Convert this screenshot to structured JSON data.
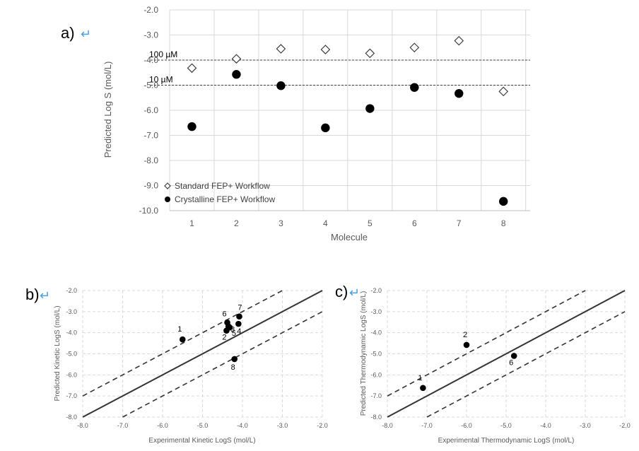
{
  "chart_data": [
    {
      "panel": "a)",
      "type": "scatter",
      "xlabel": "Molecule",
      "ylabel": "Predicted Log S (mol/L)",
      "categories": [
        "1",
        "2",
        "3",
        "4",
        "5",
        "6",
        "7",
        "8"
      ],
      "ylim": [
        -10.0,
        -2.0
      ],
      "y_ticks": [
        "-2.0",
        "-3.0",
        "-4.0",
        "-5.0",
        "-6.0",
        "-7.0",
        "-8.0",
        "-9.0",
        "-10.0"
      ],
      "grid": "vertical",
      "legend_position": "bottom-left",
      "reference_lines": [
        {
          "label": "100 µM",
          "y": -4.0
        },
        {
          "label": "10 µM",
          "y": -5.0
        }
      ],
      "series": [
        {
          "name": "Standard FEP+ Workflow",
          "marker": "open-diamond",
          "values": [
            -4.32,
            -3.95,
            -3.55,
            -3.58,
            -3.73,
            -3.5,
            -3.23,
            -5.25
          ]
        },
        {
          "name": "Crystalline FEP+ Workflow",
          "marker": "filled-circle",
          "values": [
            -6.65,
            -4.57,
            -5.02,
            -6.7,
            -5.93,
            -5.09,
            -5.33,
            -9.63
          ]
        }
      ]
    },
    {
      "panel": "b)",
      "type": "scatter",
      "xlabel": "Experimental Kinetic LogS (mol/L)",
      "ylabel": "Predicted Kinetic LogS (mol/L)",
      "xlim": [
        -8.0,
        -2.0
      ],
      "ylim": [
        -8.0,
        -2.0
      ],
      "x_ticks": [
        "-8.0",
        "-7.0",
        "-6.0",
        "-5.0",
        "-4.0",
        "-3.0",
        "-2.0"
      ],
      "y_ticks": [
        "-2.0",
        "-3.0",
        "-4.0",
        "-5.0",
        "-6.0",
        "-7.0",
        "-8.0"
      ],
      "grid": "dashed",
      "lines": [
        {
          "style": "solid",
          "offset": 0
        },
        {
          "style": "dashed",
          "offset": 1
        },
        {
          "style": "dashed",
          "offset": -1
        }
      ],
      "points": [
        {
          "label": "1",
          "x": -5.5,
          "y": -4.32
        },
        {
          "label": "2",
          "x": -4.4,
          "y": -3.9
        },
        {
          "label": "3",
          "x": -4.35,
          "y": -3.7
        },
        {
          "label": "4",
          "x": -4.1,
          "y": -3.58
        },
        {
          "label": "5",
          "x": -4.32,
          "y": -3.75
        },
        {
          "label": "6",
          "x": -4.38,
          "y": -3.52
        },
        {
          "label": "7",
          "x": -4.08,
          "y": -3.23
        },
        {
          "label": "8",
          "x": -4.2,
          "y": -5.25
        }
      ]
    },
    {
      "panel": "c)",
      "type": "scatter",
      "xlabel": "Experimental Thermodynamic LogS (mol/L)",
      "ylabel": "Predicted Thermodynamic LogS (mol/L)",
      "xlim": [
        -8.0,
        -2.0
      ],
      "ylim": [
        -8.0,
        -2.0
      ],
      "x_ticks": [
        "-8.0",
        "-7.0",
        "-6.0",
        "-5.0",
        "-4.0",
        "-3.0",
        "-2.0"
      ],
      "y_ticks": [
        "-2.0",
        "-3.0",
        "-4.0",
        "-5.0",
        "-6.0",
        "-7.0",
        "-8.0"
      ],
      "grid": "dashed",
      "lines": [
        {
          "style": "solid",
          "offset": 0
        },
        {
          "style": "dashed",
          "offset": 1
        },
        {
          "style": "dashed",
          "offset": -1
        }
      ],
      "points": [
        {
          "label": "1",
          "x": -7.1,
          "y": -6.62
        },
        {
          "label": "2",
          "x": -6.0,
          "y": -4.58
        },
        {
          "label": "6",
          "x": -4.8,
          "y": -5.1
        }
      ]
    }
  ],
  "icons": {
    "return_glyph": "↵"
  }
}
